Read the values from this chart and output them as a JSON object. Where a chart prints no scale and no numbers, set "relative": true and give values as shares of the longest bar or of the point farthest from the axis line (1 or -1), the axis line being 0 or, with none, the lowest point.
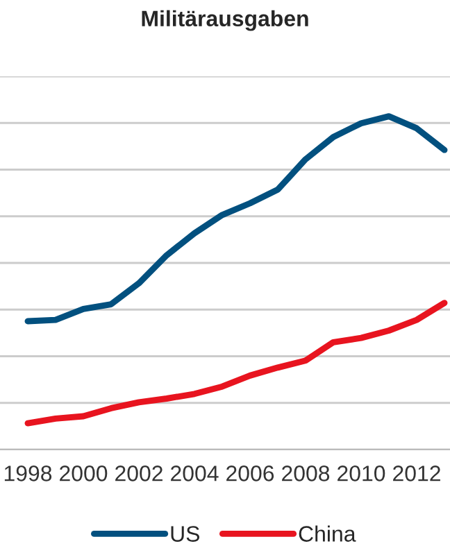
{
  "chart_data": {
    "type": "line",
    "title": "Militärausgaben",
    "relative": true,
    "x": [
      1998,
      1999,
      2000,
      2001,
      2002,
      2003,
      2004,
      2005,
      2006,
      2007,
      2008,
      2009,
      2010,
      2011,
      2012,
      2013
    ],
    "xlim": [
      1997,
      2013.2
    ],
    "xticks": [
      1998,
      2000,
      2002,
      2004,
      2006,
      2008,
      2010,
      2012
    ],
    "series": [
      {
        "name": "US",
        "color": "#02507f",
        "values": [
          0.385,
          0.389,
          0.422,
          0.436,
          0.499,
          0.583,
          0.649,
          0.704,
          0.739,
          0.78,
          0.871,
          0.938,
          0.979,
          1.0,
          0.964,
          0.899
        ]
      },
      {
        "name": "China",
        "color": "#e8141f",
        "values": [
          0.079,
          0.093,
          0.1,
          0.124,
          0.142,
          0.153,
          0.167,
          0.189,
          0.222,
          0.246,
          0.267,
          0.322,
          0.335,
          0.357,
          0.389,
          0.44
        ]
      }
    ],
    "grid": "y",
    "legend": "bottom",
    "marker": "none",
    "line_style": "solid",
    "tick_labels": "x"
  }
}
